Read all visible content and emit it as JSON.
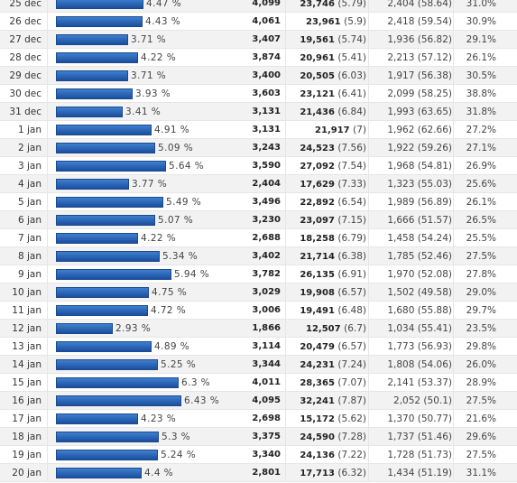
{
  "rows": [
    {
      "date": "25 dec",
      "bar_pct": "4.47 %",
      "bar_value": 4.47,
      "visits": "4,099",
      "views": "23,746",
      "views_avg": "(5.79)",
      "new": "2,404 (58.64)",
      "bounce": "31.0%"
    },
    {
      "date": "26 dec",
      "bar_pct": "4.43 %",
      "bar_value": 4.43,
      "visits": "4,061",
      "views": "23,961",
      "views_avg": "(5.9)",
      "new": "2,418 (59.54)",
      "bounce": "30.9%"
    },
    {
      "date": "27 dec",
      "bar_pct": "3.71 %",
      "bar_value": 3.71,
      "visits": "3,407",
      "views": "19,561",
      "views_avg": "(5.74)",
      "new": "1,936 (56.82)",
      "bounce": "29.1%"
    },
    {
      "date": "28 dec",
      "bar_pct": "4.22 %",
      "bar_value": 4.22,
      "visits": "3,874",
      "views": "20,961",
      "views_avg": "(5.41)",
      "new": "2,213 (57.12)",
      "bounce": "26.1%"
    },
    {
      "date": "29 dec",
      "bar_pct": "3.71 %",
      "bar_value": 3.71,
      "visits": "3,400",
      "views": "20,505",
      "views_avg": "(6.03)",
      "new": "1,917 (56.38)",
      "bounce": "30.5%"
    },
    {
      "date": "30 dec",
      "bar_pct": "3.93 %",
      "bar_value": 3.93,
      "visits": "3,603",
      "views": "23,121",
      "views_avg": "(6.41)",
      "new": "2,099 (58.25)",
      "bounce": "38.8%"
    },
    {
      "date": "31 dec",
      "bar_pct": "3.41 %",
      "bar_value": 3.41,
      "visits": "3,131",
      "views": "21,436",
      "views_avg": "(6.84)",
      "new": "1,993 (63.65)",
      "bounce": "31.8%"
    },
    {
      "date": "1 jan",
      "bar_pct": "4.91 %",
      "bar_value": 4.91,
      "visits": "3,131",
      "views": "21,917",
      "views_avg": "(7)",
      "new": "1,962 (62.66)",
      "bounce": "27.2%"
    },
    {
      "date": "2 jan",
      "bar_pct": "5.09 %",
      "bar_value": 5.09,
      "visits": "3,243",
      "views": "24,523",
      "views_avg": "(7.56)",
      "new": "1,922 (59.26)",
      "bounce": "27.1%"
    },
    {
      "date": "3 jan",
      "bar_pct": "5.64 %",
      "bar_value": 5.64,
      "visits": "3,590",
      "views": "27,092",
      "views_avg": "(7.54)",
      "new": "1,968 (54.81)",
      "bounce": "26.9%"
    },
    {
      "date": "4 jan",
      "bar_pct": "3.77 %",
      "bar_value": 3.77,
      "visits": "2,404",
      "views": "17,629",
      "views_avg": "(7.33)",
      "new": "1,323 (55.03)",
      "bounce": "25.6%"
    },
    {
      "date": "5 jan",
      "bar_pct": "5.49 %",
      "bar_value": 5.49,
      "visits": "3,496",
      "views": "22,892",
      "views_avg": "(6.54)",
      "new": "1,989 (56.89)",
      "bounce": "26.1%"
    },
    {
      "date": "6 jan",
      "bar_pct": "5.07 %",
      "bar_value": 5.07,
      "visits": "3,230",
      "views": "23,097",
      "views_avg": "(7.15)",
      "new": "1,666 (51.57)",
      "bounce": "26.5%"
    },
    {
      "date": "7 jan",
      "bar_pct": "4.22 %",
      "bar_value": 4.22,
      "visits": "2,688",
      "views": "18,258",
      "views_avg": "(6.79)",
      "new": "1,458 (54.24)",
      "bounce": "25.5%"
    },
    {
      "date": "8 jan",
      "bar_pct": "5.34 %",
      "bar_value": 5.34,
      "visits": "3,402",
      "views": "21,714",
      "views_avg": "(6.38)",
      "new": "1,785 (52.46)",
      "bounce": "27.5%"
    },
    {
      "date": "9 jan",
      "bar_pct": "5.94 %",
      "bar_value": 5.94,
      "visits": "3,782",
      "views": "26,135",
      "views_avg": "(6.91)",
      "new": "1,970 (52.08)",
      "bounce": "27.8%"
    },
    {
      "date": "10 jan",
      "bar_pct": "4.75 %",
      "bar_value": 4.75,
      "visits": "3,029",
      "views": "19,908",
      "views_avg": "(6.57)",
      "new": "1,502 (49.58)",
      "bounce": "29.0%"
    },
    {
      "date": "11 jan",
      "bar_pct": "4.72 %",
      "bar_value": 4.72,
      "visits": "3,006",
      "views": "19,491",
      "views_avg": "(6.48)",
      "new": "1,680 (55.88)",
      "bounce": "29.7%"
    },
    {
      "date": "12 jan",
      "bar_pct": "2.93 %",
      "bar_value": 2.93,
      "visits": "1,866",
      "views": "12,507",
      "views_avg": "(6.7)",
      "new": "1,034 (55.41)",
      "bounce": "23.5%"
    },
    {
      "date": "13 jan",
      "bar_pct": "4.89 %",
      "bar_value": 4.89,
      "visits": "3,114",
      "views": "20,479",
      "views_avg": "(6.57)",
      "new": "1,773 (56.93)",
      "bounce": "29.8%"
    },
    {
      "date": "14 jan",
      "bar_pct": "5.25 %",
      "bar_value": 5.25,
      "visits": "3,344",
      "views": "24,231",
      "views_avg": "(7.24)",
      "new": "1,808 (54.06)",
      "bounce": "26.0%"
    },
    {
      "date": "15 jan",
      "bar_pct": "6.3 %",
      "bar_value": 6.3,
      "visits": "4,011",
      "views": "28,365",
      "views_avg": "(7.07)",
      "new": "2,141 (53.37)",
      "bounce": "28.9%"
    },
    {
      "date": "16 jan",
      "bar_pct": "6.43 %",
      "bar_value": 6.43,
      "visits": "4,095",
      "views": "32,241",
      "views_avg": "(7.87)",
      "new": "2,052 (50.1)",
      "bounce": "27.5%"
    },
    {
      "date": "17 jan",
      "bar_pct": "4.23 %",
      "bar_value": 4.23,
      "visits": "2,698",
      "views": "15,172",
      "views_avg": "(5.62)",
      "new": "1,370 (50.77)",
      "bounce": "21.6%"
    },
    {
      "date": "18 jan",
      "bar_pct": "5.3 %",
      "bar_value": 5.3,
      "visits": "3,375",
      "views": "24,590",
      "views_avg": "(7.28)",
      "new": "1,737 (51.46)",
      "bounce": "29.6%"
    },
    {
      "date": "19 jan",
      "bar_pct": "5.24 %",
      "bar_value": 5.24,
      "visits": "3,340",
      "views": "24,136",
      "views_avg": "(7.22)",
      "new": "1,728 (51.73)",
      "bounce": "27.5%"
    },
    {
      "date": "20 jan",
      "bar_pct": "4.4 %",
      "bar_value": 4.4,
      "visits": "2,801",
      "views": "17,713",
      "views_avg": "(6.32)",
      "new": "1,434 (51.19)",
      "bounce": "31.1%"
    }
  ],
  "colors": {
    "bar": "#2a63b8",
    "row_alt": "#f2f2f2",
    "divider": "#e6e6e6"
  }
}
